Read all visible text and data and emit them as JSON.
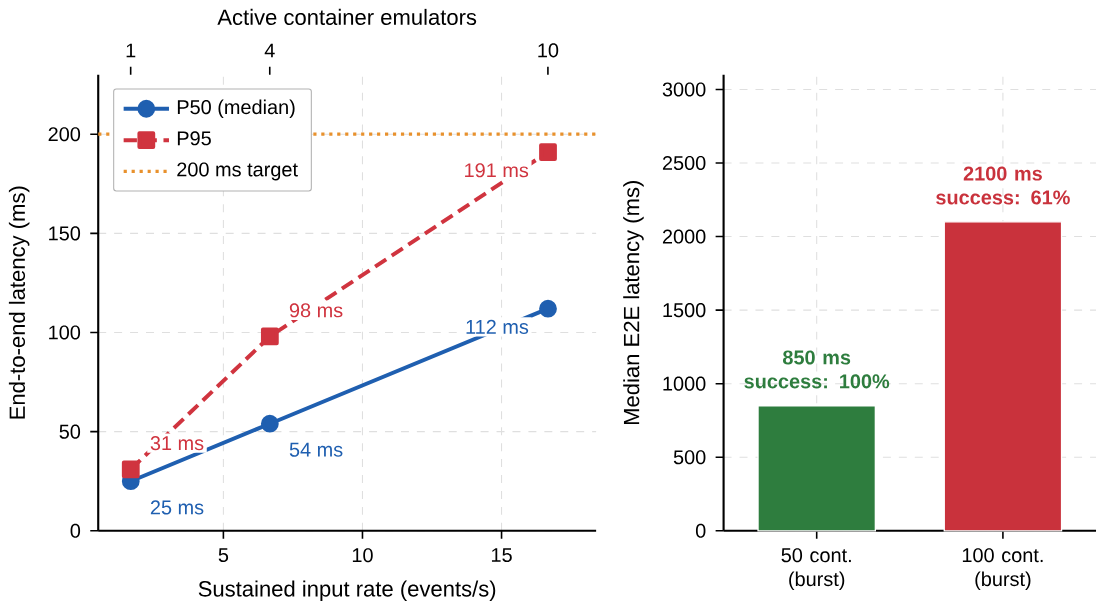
{
  "chart_data": [
    {
      "type": "line",
      "xlabel": "Sustained input rate (events/s)",
      "ylabel": "End-to-end latency (ms)",
      "x2label": "Active container emulators",
      "xlim": [
        0.5,
        18.4
      ],
      "xticks": [
        5,
        10,
        15
      ],
      "ylim": [
        0,
        230
      ],
      "yticks": [
        0,
        50,
        100,
        150,
        200
      ],
      "x2lim": [
        0.3,
        11.04
      ],
      "x2ticks": [
        1,
        4,
        10
      ],
      "grid": true,
      "legend": "top left",
      "x": [
        1.67,
        6.67,
        16.67
      ],
      "series": [
        {
          "name": "P50 (median)",
          "color": "#1f5fb0",
          "values": [
            25,
            54,
            112
          ],
          "marker": "circle",
          "line_style": "solid",
          "value_labels": [
            "25 ms",
            "54 ms",
            "112 ms"
          ]
        },
        {
          "name": "P95",
          "color": "#d0343f",
          "values": [
            31,
            98,
            191
          ],
          "marker": "square",
          "line_style": "dashed",
          "value_labels": [
            "31 ms",
            "98 ms",
            "191 ms"
          ]
        }
      ],
      "ref_lines": [
        {
          "axis": "y",
          "value": 200,
          "label": "200 ms target",
          "color": "#e8912d",
          "line_style": "dotted"
        }
      ]
    },
    {
      "type": "bar",
      "ylabel": "Median E2E latency (ms)",
      "categories": [
        "50 cont. (burst)",
        "100 cont. (burst)"
      ],
      "values": [
        850,
        2100
      ],
      "colors": [
        "#2e7d3e",
        "#c9323c"
      ],
      "value_labels": [
        "850 ms success: 100%",
        "2100 ms success: 61%"
      ],
      "ylim": [
        0,
        3100
      ],
      "yticks": [
        0,
        500,
        1000,
        1500,
        2000,
        2500,
        3000
      ],
      "grid": true
    }
  ]
}
